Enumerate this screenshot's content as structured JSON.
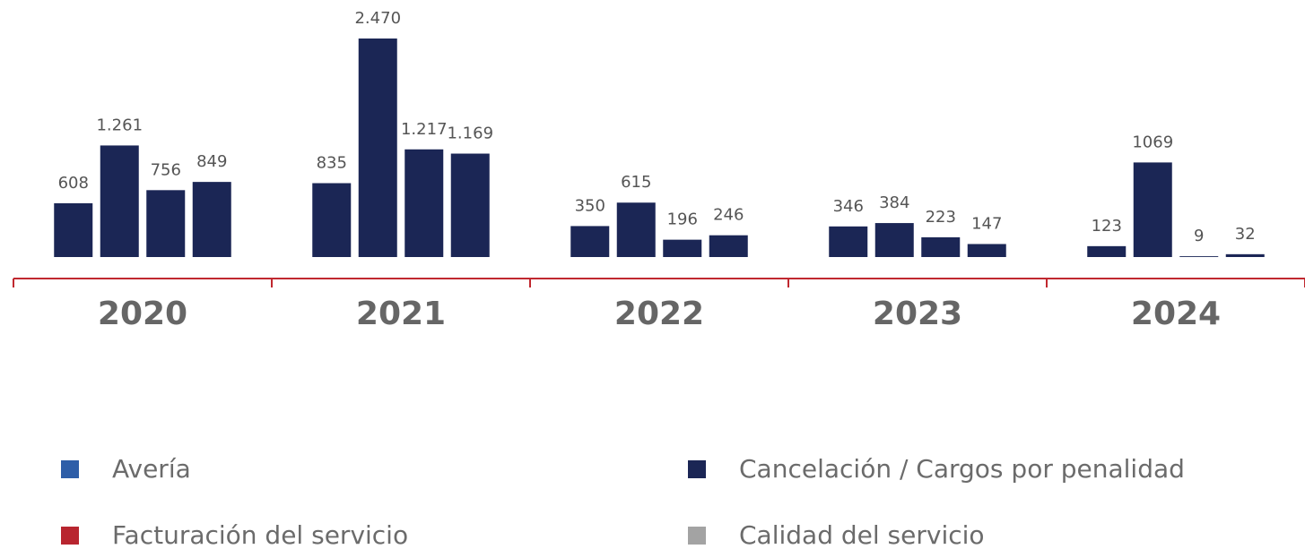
{
  "chart_data": {
    "type": "bar",
    "categories": [
      "2020",
      "2021",
      "2022",
      "2023",
      "2024"
    ],
    "bar_color": "#1b2655",
    "axis_color": "#c0282f",
    "series": [
      {
        "name": "Avería",
        "color": "#2e5ea8",
        "values": [
          608,
          835,
          350,
          346,
          123
        ]
      },
      {
        "name": "Facturación del servicio",
        "color": "#b8252f",
        "values": [
          1261,
          2470,
          615,
          384,
          1069
        ],
        "value_labels": [
          "1.261",
          "2.470",
          "615",
          "384",
          "1069"
        ]
      },
      {
        "name": "Cancelación / Cargos por penalidad",
        "color": "#1b2655",
        "values": [
          756,
          1217,
          196,
          223,
          9
        ],
        "value_labels": [
          "756",
          "1.217",
          "196",
          "223",
          "9"
        ]
      },
      {
        "name": "Calidad del servicio",
        "color": "#a3a3a3",
        "values": [
          849,
          1169,
          246,
          147,
          32
        ],
        "value_labels": [
          "849",
          "1.169",
          "246",
          "147",
          "32"
        ]
      }
    ]
  }
}
